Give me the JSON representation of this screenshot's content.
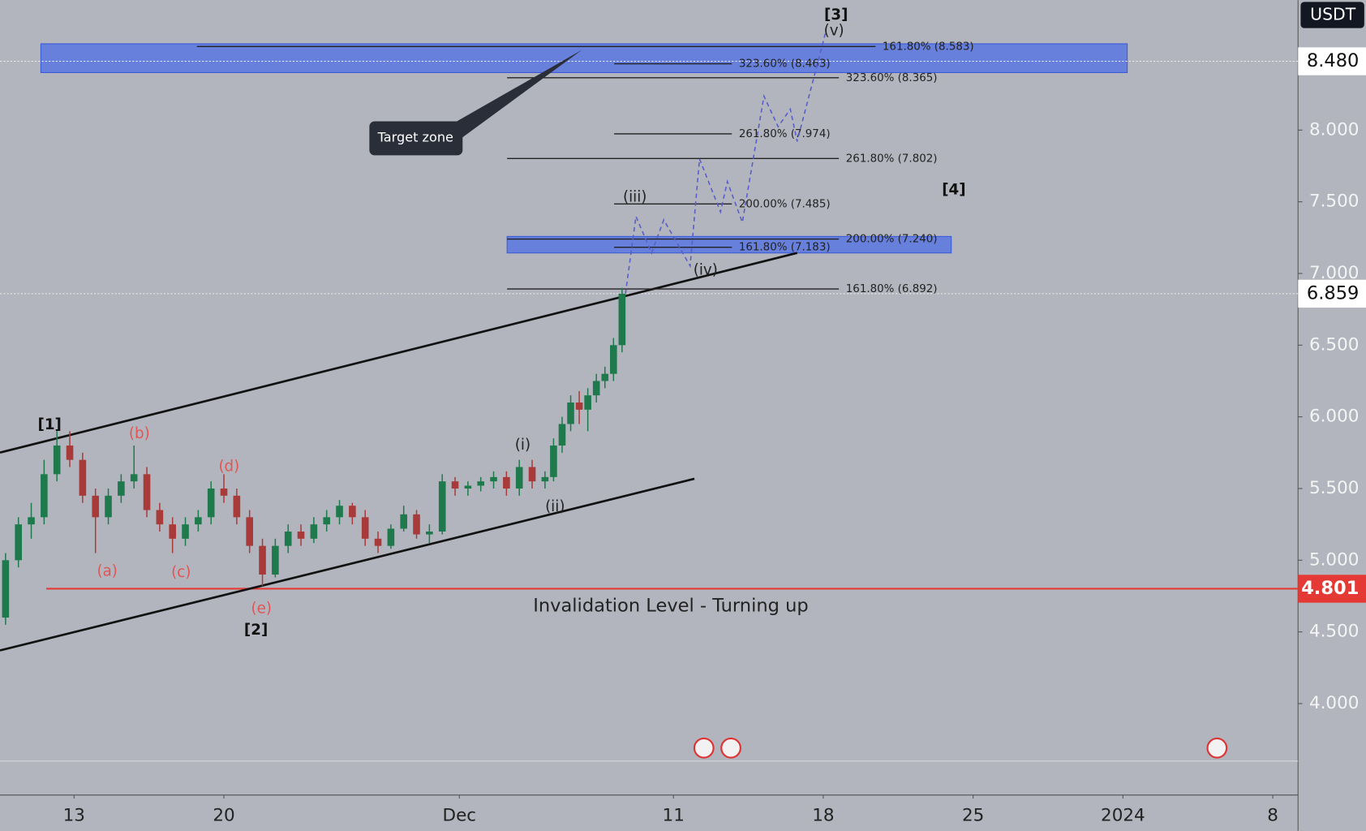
{
  "chart_data": {
    "type": "candlestick",
    "currency": "USDT",
    "xlim": [
      -3.46,
      57.18
    ],
    "ylim": [
      3.362,
      8.906
    ],
    "xticks": [
      {
        "value": 0,
        "label": "13"
      },
      {
        "value": 7,
        "label": "20"
      },
      {
        "value": 18,
        "label": "Dec"
      },
      {
        "value": 28,
        "label": "11"
      },
      {
        "value": 35,
        "label": "18"
      },
      {
        "value": 42,
        "label": "25"
      },
      {
        "value": 49,
        "label": "2024"
      },
      {
        "value": 56,
        "label": "8"
      }
    ],
    "yticks": [
      {
        "value": 4,
        "label": "4.000"
      },
      {
        "value": 4.5,
        "label": "4.500"
      },
      {
        "value": 5,
        "label": "5.000"
      },
      {
        "value": 5.5,
        "label": "5.500"
      },
      {
        "value": 6,
        "label": "6.000"
      },
      {
        "value": 6.5,
        "label": "6.500"
      },
      {
        "value": 7,
        "label": "7.000"
      },
      {
        "value": 7.5,
        "label": "7.500"
      },
      {
        "value": 8,
        "label": "8.000"
      }
    ],
    "up_color": "#1e7a4c",
    "down_color": "#a83a3a",
    "candles": {
      "x": [
        -3.2,
        -2.6,
        -2.0,
        -1.4,
        -0.8,
        -0.2,
        0.4,
        1.0,
        1.6,
        2.2,
        2.8,
        3.4,
        4.0,
        4.6,
        5.2,
        5.8,
        6.4,
        7.0,
        7.6,
        8.2,
        8.8,
        9.4,
        10.0,
        10.6,
        11.2,
        11.8,
        12.4,
        13.0,
        13.6,
        14.2,
        14.8,
        15.4,
        16.0,
        16.6,
        17.2,
        17.8,
        18.4,
        19.0,
        19.6,
        20.2,
        20.8,
        21.4,
        22.0,
        22.4,
        22.8,
        23.2,
        23.6,
        24.0,
        24.4,
        24.8,
        25.2,
        25.6
      ],
      "open": [
        4.6,
        5.0,
        5.25,
        5.3,
        5.6,
        5.8,
        5.7,
        5.45,
        5.3,
        5.45,
        5.55,
        5.6,
        5.35,
        5.25,
        5.15,
        5.25,
        5.3,
        5.5,
        5.45,
        5.3,
        5.1,
        4.9,
        5.1,
        5.2,
        5.15,
        5.25,
        5.3,
        5.38,
        5.3,
        5.15,
        5.1,
        5.22,
        5.32,
        5.18,
        5.2,
        5.55,
        5.5,
        5.52,
        5.55,
        5.58,
        5.5,
        5.65,
        5.55,
        5.58,
        5.8,
        5.95,
        6.1,
        6.05,
        6.15,
        6.25,
        6.3,
        6.5
      ],
      "high": [
        5.05,
        5.3,
        5.4,
        5.7,
        5.9,
        5.9,
        5.75,
        5.5,
        5.5,
        5.6,
        5.8,
        5.65,
        5.4,
        5.3,
        5.3,
        5.35,
        5.55,
        5.6,
        5.5,
        5.35,
        5.15,
        5.15,
        5.25,
        5.25,
        5.3,
        5.35,
        5.42,
        5.4,
        5.35,
        5.2,
        5.25,
        5.38,
        5.35,
        5.25,
        5.6,
        5.58,
        5.55,
        5.58,
        5.62,
        5.62,
        5.7,
        5.7,
        5.62,
        5.85,
        6.0,
        6.15,
        6.18,
        6.2,
        6.3,
        6.35,
        6.55,
        6.9
      ],
      "low": [
        4.55,
        4.95,
        5.15,
        5.25,
        5.55,
        5.65,
        5.4,
        5.05,
        5.25,
        5.4,
        5.5,
        5.3,
        5.2,
        5.05,
        5.1,
        5.2,
        5.25,
        5.4,
        5.25,
        5.05,
        4.82,
        4.88,
        5.05,
        5.1,
        5.12,
        5.2,
        5.25,
        5.25,
        5.1,
        5.05,
        5.08,
        5.2,
        5.15,
        5.12,
        5.18,
        5.45,
        5.45,
        5.48,
        5.5,
        5.45,
        5.45,
        5.5,
        5.5,
        5.55,
        5.75,
        5.9,
        5.95,
        5.9,
        6.1,
        6.2,
        6.25,
        6.45
      ],
      "close": [
        5.0,
        5.25,
        5.3,
        5.6,
        5.8,
        5.7,
        5.45,
        5.3,
        5.45,
        5.55,
        5.6,
        5.35,
        5.25,
        5.15,
        5.25,
        5.3,
        5.5,
        5.45,
        5.3,
        5.1,
        4.9,
        5.1,
        5.2,
        5.15,
        5.25,
        5.3,
        5.38,
        5.3,
        5.15,
        5.1,
        5.22,
        5.32,
        5.18,
        5.2,
        5.55,
        5.5,
        5.52,
        5.55,
        5.58,
        5.5,
        5.65,
        5.55,
        5.58,
        5.8,
        5.95,
        6.1,
        6.05,
        6.15,
        6.25,
        6.3,
        6.5,
        6.859
      ]
    },
    "zones": [
      {
        "x": [
          -1.55,
          49.2
        ],
        "y": [
          8.401,
          8.602
        ]
      },
      {
        "x": [
          20.23,
          40.98
        ],
        "y": [
          7.143,
          7.258
        ]
      }
    ],
    "fib_levels": [
      {
        "label": "161.80% (8.583)",
        "value": 8.583,
        "x": [
          5.74,
          37.44
        ]
      },
      {
        "label": "323.60% (8.463)",
        "value": 8.463,
        "x": [
          25.23,
          30.73
        ]
      },
      {
        "label": "323.60% (8.365)",
        "value": 8.365,
        "x": [
          20.23,
          35.73
        ]
      },
      {
        "label": "261.80% (7.974)",
        "value": 7.974,
        "x": [
          25.23,
          30.73
        ]
      },
      {
        "label": "261.80% (7.802)",
        "value": 7.802,
        "x": [
          20.23,
          35.73
        ]
      },
      {
        "label": "200.00% (7.485)",
        "value": 7.485,
        "x": [
          25.23,
          30.73
        ]
      },
      {
        "label": "200.00% (7.240)",
        "value": 7.24,
        "x": [
          20.23,
          35.73
        ]
      },
      {
        "label": "161.80% (7.183)",
        "value": 7.183,
        "x": [
          25.23,
          30.73
        ]
      },
      {
        "label": "161.80% (6.892)",
        "value": 6.892,
        "x": [
          20.23,
          35.73
        ]
      }
    ],
    "channel": [
      {
        "x": [
          -3.46,
          33.78
        ],
        "y": [
          5.751,
          7.143
        ]
      },
      {
        "x": [
          -3.46,
          28.98
        ],
        "y": [
          4.371,
          5.568
        ]
      }
    ],
    "projection": {
      "x": [
        25.76,
        26.25,
        26.98,
        27.55,
        28.78,
        29.22,
        30.2,
        30.52,
        31.22,
        32.23,
        32.89,
        33.46,
        33.78,
        35.12
      ],
      "y": [
        6.859,
        7.398,
        7.143,
        7.374,
        7.052,
        7.799,
        7.429,
        7.641,
        7.356,
        8.237,
        8.024,
        8.146,
        7.921,
        8.687
      ]
    },
    "wave_labels": [
      {
        "text": "[1]",
        "x": -1.14,
        "y": 5.94,
        "color": "#111"
      },
      {
        "text": "[2]",
        "x": 8.5,
        "y": 4.51,
        "color": "#111"
      },
      {
        "text": "[3]",
        "x": 35.6,
        "y": 8.8,
        "color": "#111"
      },
      {
        "text": "[4]",
        "x": 41.1,
        "y": 7.58,
        "color": "#111"
      },
      {
        "text": "(i)",
        "x": 20.96,
        "y": 5.8,
        "color": "#222"
      },
      {
        "text": "(ii)",
        "x": 22.47,
        "y": 5.37,
        "color": "#222"
      },
      {
        "text": "(iii)",
        "x": 26.2,
        "y": 7.53,
        "color": "#222"
      },
      {
        "text": "(iv)",
        "x": 29.5,
        "y": 7.02,
        "color": "#222"
      },
      {
        "text": "(v)",
        "x": 35.5,
        "y": 8.69,
        "color": "#222"
      },
      {
        "text": "(a)",
        "x": 1.55,
        "y": 4.92,
        "color": "#e05555"
      },
      {
        "text": "(b)",
        "x": 3.05,
        "y": 5.88,
        "color": "#e05555"
      },
      {
        "text": "(c)",
        "x": 5.0,
        "y": 4.91,
        "color": "#e05555"
      },
      {
        "text": "(d)",
        "x": 7.24,
        "y": 5.65,
        "color": "#e05555"
      },
      {
        "text": "(e)",
        "x": 8.75,
        "y": 4.66,
        "color": "#e05555"
      }
    ],
    "invalidation": {
      "value": 4.801,
      "label": "4.801",
      "text": "Invalidation Level - Turning up",
      "x": -1.3
    },
    "price_lines": [
      {
        "value": 8.48,
        "label": "8.480"
      },
      {
        "value": 6.859,
        "label": "6.859"
      }
    ],
    "callout": "Target zone"
  }
}
